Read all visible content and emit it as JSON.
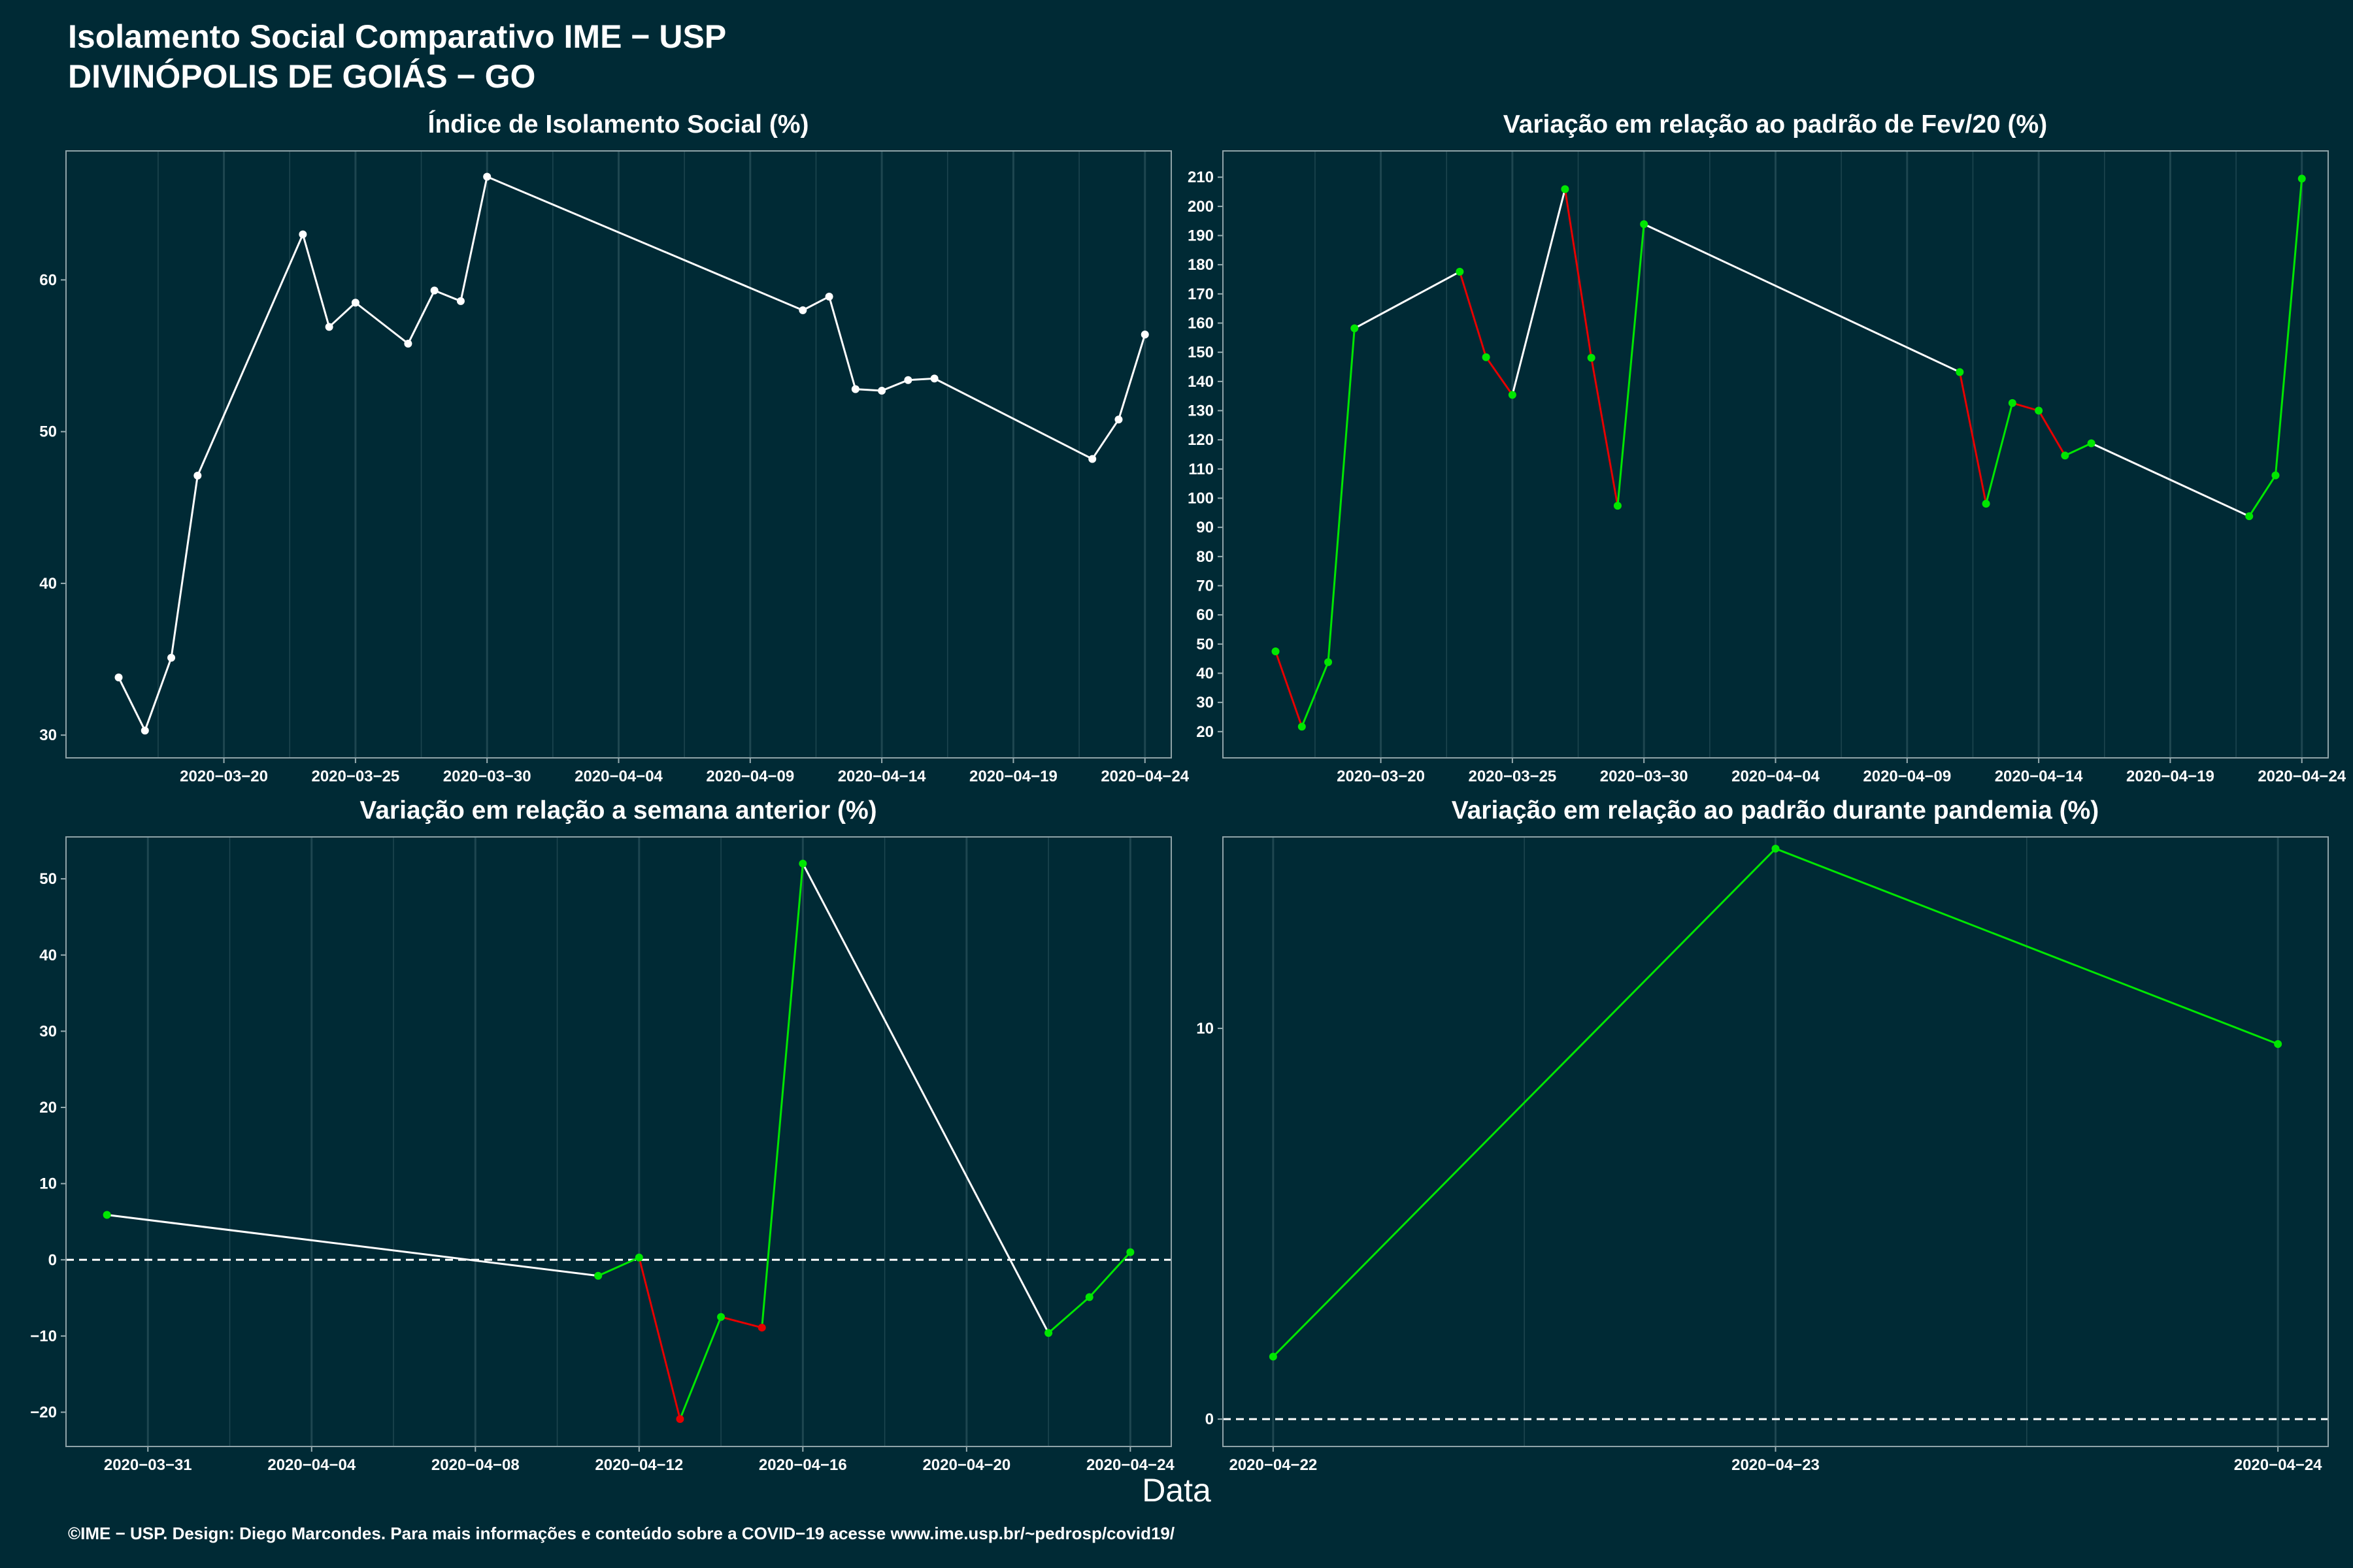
{
  "header": {
    "title": "Isolamento Social Comparativo IME − USP",
    "subtitle": "DIVINÓPOLIS DE GOIÁS − GO"
  },
  "xaxis_label": "Data",
  "footer": "©IME − USP. Design: Diego Marcondes. Para mais informações e conteúdo sobre a COVID−19 acesse www.ime.usp.br/~pedrosp/covid19/",
  "colors": {
    "background": "#002a35",
    "line_neutral": "#ffffff",
    "increase": "#00e600",
    "decrease": "#e60000"
  },
  "chart_data": [
    {
      "type": "line",
      "title": "Índice de Isolamento Social (%)",
      "xlim": [
        "2020-03-14",
        "2020-04-25"
      ],
      "x_ticks": [
        "2020-03-20",
        "2020-03-25",
        "2020-03-30",
        "2020-04-04",
        "2020-04-09",
        "2020-04-14",
        "2020-04-19",
        "2020-04-24"
      ],
      "ylim": [
        28.5,
        68.5
      ],
      "y_ticks": [
        30,
        40,
        50,
        60
      ],
      "zero_line": false,
      "colored_segments": false,
      "point_color": "#ffffff",
      "x": [
        "2020-03-16",
        "2020-03-17",
        "2020-03-18",
        "2020-03-19",
        "2020-03-23",
        "2020-03-24",
        "2020-03-25",
        "2020-03-27",
        "2020-03-28",
        "2020-03-29",
        "2020-03-30",
        "2020-04-11",
        "2020-04-12",
        "2020-04-13",
        "2020-04-14",
        "2020-04-15",
        "2020-04-16",
        "2020-04-22",
        "2020-04-23",
        "2020-04-24"
      ],
      "y": [
        33.8,
        30.3,
        35.1,
        47.1,
        63.0,
        56.9,
        58.5,
        55.8,
        59.3,
        58.6,
        66.8,
        58.0,
        58.9,
        52.8,
        52.7,
        53.4,
        53.5,
        48.2,
        50.8,
        56.4
      ]
    },
    {
      "type": "line",
      "title": "Variação em relação ao padrão de Fev/20 (%)",
      "xlim": [
        "2020-03-14",
        "2020-04-25"
      ],
      "x_ticks": [
        "2020-03-20",
        "2020-03-25",
        "2020-03-30",
        "2020-04-04",
        "2020-04-09",
        "2020-04-14",
        "2020-04-19",
        "2020-04-24"
      ],
      "ylim": [
        11,
        219
      ],
      "y_ticks": [
        20,
        30,
        40,
        50,
        60,
        70,
        80,
        90,
        100,
        110,
        120,
        130,
        140,
        150,
        160,
        170,
        180,
        190,
        200,
        210
      ],
      "zero_line": false,
      "colored_segments": true,
      "point_color": "#00e600",
      "x": [
        "2020-03-16",
        "2020-03-17",
        "2020-03-18",
        "2020-03-19",
        "2020-03-23",
        "2020-03-24",
        "2020-03-25",
        "2020-03-27",
        "2020-03-28",
        "2020-03-29",
        "2020-03-30",
        "2020-04-11",
        "2020-04-12",
        "2020-04-13",
        "2020-04-14",
        "2020-04-15",
        "2020-04-16",
        "2020-04-22",
        "2020-04-23",
        "2020-04-24"
      ],
      "y": [
        47.5,
        21.7,
        43.8,
        158.2,
        177.6,
        148.3,
        135.4,
        205.9,
        148.1,
        97.4,
        193.9,
        143.2,
        98.1,
        132.6,
        130.0,
        114.6,
        118.8,
        93.8,
        107.8,
        209.5
      ]
    },
    {
      "type": "line",
      "title": "Variação em relação a semana anterior (%)",
      "xlim": [
        "2020-03-29",
        "2020-04-25"
      ],
      "x_ticks": [
        "2020-03-31",
        "2020-04-04",
        "2020-04-08",
        "2020-04-12",
        "2020-04-16",
        "2020-04-20",
        "2020-04-24"
      ],
      "ylim": [
        -24.5,
        55.5
      ],
      "y_ticks": [
        -20,
        -10,
        0,
        10,
        20,
        30,
        40,
        50
      ],
      "zero_line": true,
      "colored_segments": true,
      "x": [
        "2020-03-30",
        "2020-04-11",
        "2020-04-12",
        "2020-04-13",
        "2020-04-14",
        "2020-04-15",
        "2020-04-16",
        "2020-04-22",
        "2020-04-23",
        "2020-04-24"
      ],
      "y": [
        5.9,
        -2.1,
        0.3,
        -20.9,
        -7.5,
        -8.9,
        52.0,
        -9.6,
        -4.9,
        1.0
      ]
    },
    {
      "type": "line",
      "title": "Variação em relação ao padrão durante pandemia (%)",
      "xlim": [
        "2020-04-21.9",
        "2020-04-24.1"
      ],
      "x_ticks": [
        "2020-04-22",
        "2020-04-23",
        "2020-04-24"
      ],
      "ylim": [
        -0.7,
        14.9
      ],
      "y_ticks": [
        0,
        10
      ],
      "zero_line": true,
      "colored_segments": false,
      "line_color": "#00e600",
      "point_color": "#00e600",
      "x": [
        "2020-04-22",
        "2020-04-23",
        "2020-04-24"
      ],
      "y": [
        1.6,
        14.6,
        9.6
      ]
    }
  ]
}
